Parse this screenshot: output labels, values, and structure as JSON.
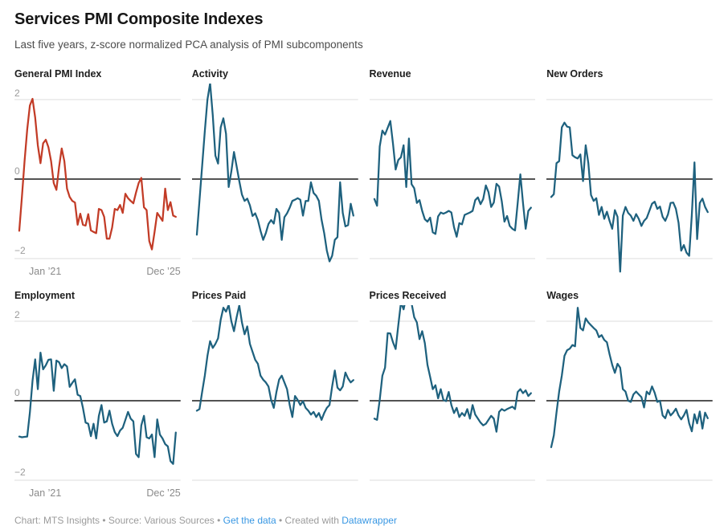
{
  "header": {
    "title": "Services PMI Composite Indexes",
    "subtitle": "Last five years, z-score normalized PCA analysis of PMI subcomponents"
  },
  "colors": {
    "red_line": "#c23b26",
    "teal_line": "#1e617e",
    "grid_line": "#dedede",
    "zero_line": "#1a1a1a",
    "axis_label": "#9b9b9b",
    "panel_title": "#1d1d1d",
    "link": "#3897e3"
  },
  "chart_data": {
    "type": "line",
    "layout": "small-multiples, 4 columns x 2 rows",
    "x_range": "Jan 2021 - Dec 2025, monthly (60 points)",
    "x_ticks": [
      "Jan ’21",
      "Dec ’25"
    ],
    "y_ticks": [
      "2",
      "0",
      "−2"
    ],
    "y_gridlines": [
      2,
      0,
      -2
    ],
    "y_domain_rendered": [
      -2.4,
      2.4
    ],
    "zero_baseline": true,
    "panels": [
      {
        "title": "General PMI Index",
        "color": "#c23b26",
        "show_y_axis": true,
        "show_x_axis": true,
        "values": [
          -1.3,
          -0.45,
          0.45,
          1.25,
          1.85,
          2.02,
          1.55,
          0.85,
          0.4,
          0.9,
          0.99,
          0.8,
          0.45,
          -0.1,
          -0.27,
          0.3,
          0.77,
          0.45,
          -0.24,
          -0.45,
          -0.55,
          -0.59,
          -1.15,
          -0.87,
          -1.15,
          -1.17,
          -0.88,
          -1.29,
          -1.33,
          -1.36,
          -0.75,
          -0.78,
          -0.95,
          -1.5,
          -1.5,
          -1.22,
          -0.75,
          -0.78,
          -0.65,
          -0.85,
          -0.37,
          -0.48,
          -0.55,
          -0.61,
          -0.34,
          -0.1,
          0.03,
          -0.71,
          -0.78,
          -1.56,
          -1.77,
          -1.33,
          -0.85,
          -0.95,
          -1.05,
          -0.24,
          -0.78,
          -0.58,
          -0.92,
          -0.95
        ]
      },
      {
        "title": "Activity",
        "color": "#1e617e",
        "show_y_axis": false,
        "show_x_axis": false,
        "values": [
          -1.4,
          -0.54,
          0.33,
          1.2,
          2.0,
          2.41,
          1.61,
          0.59,
          0.39,
          1.3,
          1.53,
          1.14,
          -0.2,
          0.19,
          0.68,
          0.32,
          -0.05,
          -0.39,
          -0.55,
          -0.49,
          -0.66,
          -0.93,
          -0.86,
          -1.03,
          -1.3,
          -1.53,
          -1.36,
          -1.13,
          -1.03,
          -1.12,
          -0.75,
          -0.85,
          -1.53,
          -0.96,
          -0.86,
          -0.72,
          -0.55,
          -0.52,
          -0.48,
          -0.52,
          -0.92,
          -0.55,
          -0.55,
          -0.08,
          -0.35,
          -0.42,
          -0.55,
          -1.02,
          -1.36,
          -1.8,
          -2.07,
          -1.93,
          -1.53,
          -1.46,
          -0.08,
          -0.85,
          -1.19,
          -1.16,
          -0.62,
          -0.92
        ]
      },
      {
        "title": "Revenue",
        "color": "#1e617e",
        "show_y_axis": false,
        "show_x_axis": false,
        "values": [
          -0.5,
          -0.67,
          0.82,
          1.22,
          1.12,
          1.29,
          1.46,
          0.89,
          0.24,
          0.48,
          0.55,
          0.85,
          -0.2,
          1.02,
          -0.13,
          -0.23,
          -0.6,
          -0.53,
          -0.8,
          -1.01,
          -1.07,
          -0.97,
          -1.34,
          -1.38,
          -0.94,
          -0.84,
          -0.87,
          -0.84,
          -0.8,
          -0.84,
          -1.21,
          -1.45,
          -1.11,
          -1.14,
          -0.9,
          -0.87,
          -0.84,
          -0.8,
          -0.53,
          -0.46,
          -0.63,
          -0.5,
          -0.16,
          -0.33,
          -0.7,
          -0.59,
          -0.12,
          -0.19,
          -0.56,
          -1.07,
          -0.93,
          -1.18,
          -1.25,
          -1.29,
          -0.6,
          0.12,
          -0.6,
          -1.25,
          -0.8,
          -0.72
        ]
      },
      {
        "title": "New Orders",
        "color": "#1e617e",
        "show_y_axis": false,
        "show_x_axis": false,
        "values": [
          -0.45,
          -0.38,
          0.4,
          0.45,
          1.3,
          1.42,
          1.32,
          1.3,
          0.6,
          0.55,
          0.52,
          0.62,
          -0.05,
          0.85,
          0.4,
          -0.4,
          -0.55,
          -0.48,
          -0.9,
          -0.7,
          -1.0,
          -0.82,
          -1.05,
          -1.25,
          -0.78,
          -0.95,
          -2.33,
          -0.92,
          -0.7,
          -0.85,
          -0.92,
          -1.05,
          -0.88,
          -1.0,
          -1.18,
          -1.05,
          -0.98,
          -0.8,
          -0.62,
          -0.57,
          -0.75,
          -0.69,
          -0.95,
          -1.05,
          -0.89,
          -0.6,
          -0.59,
          -0.75,
          -1.1,
          -1.8,
          -1.66,
          -1.85,
          -1.93,
          -0.9,
          0.42,
          -1.51,
          -0.6,
          -0.49,
          -0.7,
          -0.83
        ]
      },
      {
        "title": "Employment",
        "color": "#1e617e",
        "show_y_axis": true,
        "show_x_axis": true,
        "values": [
          -0.9,
          -0.92,
          -0.91,
          -0.9,
          -0.3,
          0.5,
          1.04,
          0.29,
          1.21,
          0.79,
          0.89,
          1.03,
          1.04,
          0.25,
          1.01,
          0.97,
          0.82,
          0.92,
          0.86,
          0.35,
          0.45,
          0.54,
          0.15,
          0.12,
          -0.18,
          -0.55,
          -0.58,
          -0.89,
          -0.58,
          -0.95,
          -0.38,
          -0.11,
          -0.55,
          -0.52,
          -0.25,
          -0.58,
          -0.79,
          -0.89,
          -0.75,
          -0.68,
          -0.48,
          -0.28,
          -0.45,
          -0.52,
          -1.34,
          -1.42,
          -0.62,
          -0.38,
          -0.92,
          -0.95,
          -0.85,
          -1.42,
          -0.47,
          -0.85,
          -0.95,
          -1.09,
          -1.15,
          -1.52,
          -1.59,
          -0.8
        ]
      },
      {
        "title": "Prices Paid",
        "color": "#1e617e",
        "show_y_axis": false,
        "show_x_axis": false,
        "values": [
          -0.25,
          -0.21,
          0.22,
          0.63,
          1.13,
          1.5,
          1.33,
          1.43,
          1.57,
          2.04,
          2.34,
          2.24,
          2.41,
          2.0,
          1.75,
          2.1,
          2.4,
          1.97,
          1.67,
          1.87,
          1.43,
          1.23,
          1.03,
          0.93,
          0.63,
          0.53,
          0.46,
          0.36,
          0.02,
          -0.18,
          0.22,
          0.53,
          0.63,
          0.46,
          0.29,
          -0.11,
          -0.41,
          0.12,
          0.02,
          -0.11,
          -0.01,
          -0.18,
          -0.25,
          -0.35,
          -0.28,
          -0.41,
          -0.31,
          -0.48,
          -0.31,
          -0.18,
          -0.11,
          0.36,
          0.76,
          0.33,
          0.26,
          0.36,
          0.71,
          0.56,
          0.46,
          0.52
        ]
      },
      {
        "title": "Prices Received",
        "color": "#1e617e",
        "show_y_axis": false,
        "show_x_axis": false,
        "values": [
          -0.45,
          -0.48,
          0.02,
          0.63,
          0.83,
          1.7,
          1.69,
          1.47,
          1.3,
          1.9,
          2.47,
          2.3,
          2.62,
          2.68,
          2.45,
          2.1,
          1.97,
          1.55,
          1.75,
          1.45,
          0.9,
          0.6,
          0.29,
          0.39,
          0.06,
          0.29,
          0.02,
          -0.01,
          0.22,
          -0.11,
          -0.31,
          -0.18,
          -0.41,
          -0.31,
          -0.38,
          -0.21,
          -0.45,
          -0.11,
          -0.35,
          -0.45,
          -0.55,
          -0.62,
          -0.58,
          -0.48,
          -0.38,
          -0.45,
          -0.78,
          -0.28,
          -0.21,
          -0.25,
          -0.21,
          -0.18,
          -0.15,
          -0.21,
          0.22,
          0.29,
          0.19,
          0.26,
          0.12,
          0.19
        ]
      },
      {
        "title": "Wages",
        "color": "#1e617e",
        "show_y_axis": false,
        "show_x_axis": false,
        "values": [
          -1.17,
          -0.87,
          -0.3,
          0.23,
          0.63,
          1.13,
          1.27,
          1.31,
          1.4,
          1.37,
          2.34,
          1.83,
          1.77,
          2.07,
          1.97,
          1.9,
          1.83,
          1.77,
          1.6,
          1.65,
          1.53,
          1.47,
          1.17,
          0.9,
          0.7,
          0.93,
          0.83,
          0.29,
          0.23,
          0.0,
          -0.03,
          0.16,
          0.23,
          0.16,
          0.09,
          -0.17,
          0.23,
          0.16,
          0.36,
          0.2,
          -0.03,
          0.0,
          -0.37,
          -0.44,
          -0.23,
          -0.37,
          -0.3,
          -0.2,
          -0.37,
          -0.47,
          -0.37,
          -0.23,
          -0.57,
          -0.77,
          -0.34,
          -0.57,
          -0.27,
          -0.7,
          -0.3,
          -0.44
        ]
      }
    ]
  },
  "footer": {
    "prefix": "Chart: MTS Insights • Source: Various Sources • ",
    "get_data_label": "Get the data",
    "middle": " • Created with ",
    "datawrapper_label": "Datawrapper"
  }
}
